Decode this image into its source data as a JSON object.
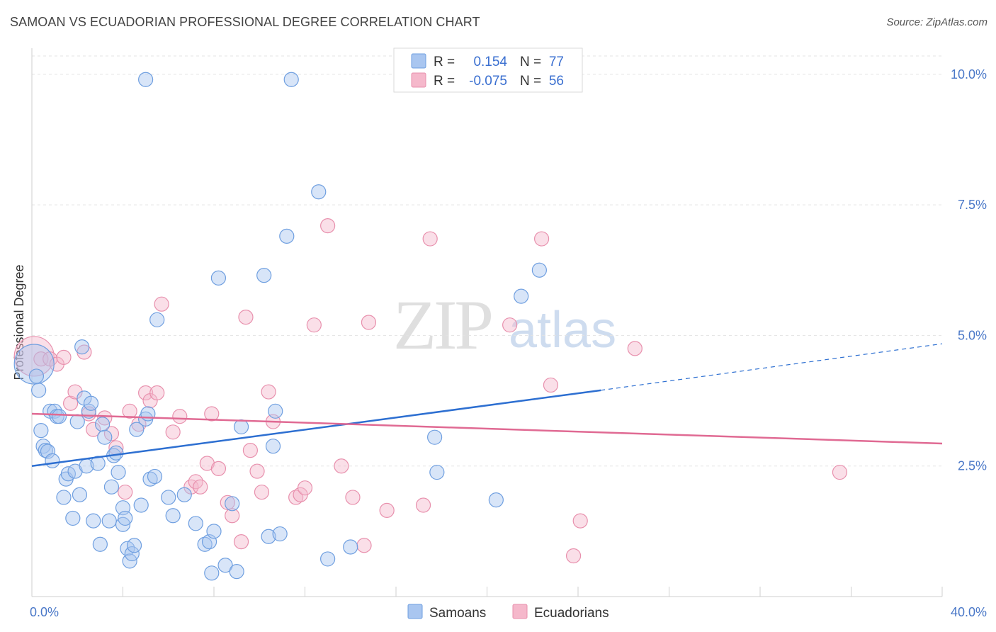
{
  "title": "SAMOAN VS ECUADORIAN PROFESSIONAL DEGREE CORRELATION CHART",
  "source": "Source: ZipAtlas.com",
  "watermark": "ZIPatlas",
  "colors": {
    "samoans": "#a9c6f0",
    "samoans_stroke": "#6f9fe0",
    "samoans_line": "#2d6fd1",
    "ecuadorians": "#f5b8cb",
    "ecuadorians_stroke": "#e890ad",
    "ecuadorians_line": "#e06a93",
    "tick_text": "#4a78c8"
  },
  "legend": {
    "samoans": {
      "r_label": "R =",
      "r_value": "0.154",
      "n_label": "N =",
      "n_value": "77"
    },
    "ecuadorians": {
      "r_label": "R =",
      "r_value": "-0.075",
      "n_label": "N =",
      "n_value": "56"
    }
  },
  "chart_data": {
    "type": "scatter",
    "title": "SAMOAN VS ECUADORIAN PROFESSIONAL DEGREE CORRELATION CHART",
    "xlabel": "",
    "ylabel": "Professional Degree",
    "xlim": [
      0,
      40
    ],
    "ylim": [
      0,
      10.5
    ],
    "x_tick_labels": [
      "0.0%",
      "40.0%"
    ],
    "y_ticks": [
      2.5,
      5.0,
      7.5,
      10.0
    ],
    "y_tick_labels": [
      "2.5%",
      "5.0%",
      "7.5%",
      "10.0%"
    ],
    "grid": true,
    "legend_position": "top-center",
    "series": [
      {
        "name": "Samoans",
        "trend": {
          "x0": 0,
          "y0": 2.5,
          "x1": 25,
          "y1": 3.95,
          "dashed_to_x": 40,
          "dashed_to_y": 4.84
        },
        "points": [
          [
            0.1,
            4.45,
            28
          ],
          [
            0.2,
            4.22,
            10
          ],
          [
            0.3,
            3.95,
            10
          ],
          [
            0.4,
            3.18,
            10
          ],
          [
            0.5,
            2.88,
            10
          ],
          [
            0.6,
            2.8,
            10
          ],
          [
            0.7,
            2.78,
            10
          ],
          [
            0.8,
            3.55,
            10
          ],
          [
            0.9,
            2.6,
            10
          ],
          [
            1.0,
            3.55,
            10
          ],
          [
            1.1,
            3.45,
            10
          ],
          [
            1.2,
            3.45,
            10
          ],
          [
            1.4,
            1.9,
            10
          ],
          [
            1.5,
            2.25,
            10
          ],
          [
            1.6,
            2.35,
            10
          ],
          [
            1.8,
            1.5,
            10
          ],
          [
            1.9,
            2.4,
            10
          ],
          [
            2.0,
            3.35,
            10
          ],
          [
            2.1,
            1.95,
            10
          ],
          [
            2.2,
            4.78,
            10
          ],
          [
            2.3,
            3.8,
            10
          ],
          [
            2.4,
            2.5,
            10
          ],
          [
            2.5,
            3.55,
            10
          ],
          [
            2.6,
            3.7,
            10
          ],
          [
            2.7,
            1.45,
            10
          ],
          [
            2.9,
            2.55,
            10
          ],
          [
            3.0,
            1.0,
            10
          ],
          [
            3.1,
            3.3,
            10
          ],
          [
            3.2,
            3.05,
            10
          ],
          [
            3.4,
            1.45,
            10
          ],
          [
            3.5,
            2.1,
            10
          ],
          [
            3.6,
            2.7,
            10
          ],
          [
            3.7,
            2.75,
            10
          ],
          [
            3.8,
            2.38,
            10
          ],
          [
            4.0,
            1.7,
            10
          ],
          [
            4.0,
            1.38,
            10
          ],
          [
            4.1,
            1.5,
            10
          ],
          [
            4.2,
            0.92,
            10
          ],
          [
            4.3,
            0.68,
            10
          ],
          [
            4.4,
            0.82,
            10
          ],
          [
            4.5,
            0.98,
            10
          ],
          [
            4.6,
            3.2,
            10
          ],
          [
            4.8,
            1.75,
            10
          ],
          [
            5.0,
            3.4,
            10
          ],
          [
            5.1,
            3.5,
            10
          ],
          [
            5.2,
            2.25,
            10
          ],
          [
            5.4,
            2.3,
            10
          ],
          [
            5.5,
            5.3,
            10
          ],
          [
            6.0,
            1.9,
            10
          ],
          [
            6.2,
            1.55,
            10
          ],
          [
            6.7,
            1.95,
            10
          ],
          [
            7.2,
            1.4,
            10
          ],
          [
            7.6,
            1.0,
            10
          ],
          [
            7.8,
            1.05,
            10
          ],
          [
            7.9,
            0.45,
            10
          ],
          [
            8.0,
            1.25,
            10
          ],
          [
            8.2,
            6.1,
            10
          ],
          [
            8.5,
            0.6,
            10
          ],
          [
            8.8,
            1.78,
            10
          ],
          [
            9.0,
            0.48,
            10
          ],
          [
            9.2,
            3.25,
            10
          ],
          [
            10.2,
            6.15,
            10
          ],
          [
            10.4,
            1.15,
            10
          ],
          [
            10.6,
            2.88,
            10
          ],
          [
            10.7,
            3.55,
            10
          ],
          [
            10.9,
            1.2,
            10
          ],
          [
            11.2,
            6.9,
            10
          ],
          [
            11.4,
            9.9,
            10
          ],
          [
            12.6,
            7.75,
            10
          ],
          [
            13.0,
            0.72,
            10
          ],
          [
            14.0,
            0.95,
            10
          ],
          [
            17.7,
            3.05,
            10
          ],
          [
            17.8,
            2.38,
            10
          ],
          [
            20.4,
            1.85,
            10
          ],
          [
            21.5,
            5.75,
            10
          ],
          [
            22.3,
            6.25,
            10
          ],
          [
            5.0,
            9.9,
            10
          ]
        ]
      },
      {
        "name": "Ecuadorians",
        "trend": {
          "x0": 0,
          "y0": 3.5,
          "x1": 40,
          "y1": 2.93
        },
        "points": [
          [
            0.1,
            4.6,
            28
          ],
          [
            0.4,
            4.55,
            10
          ],
          [
            0.8,
            4.55,
            10
          ],
          [
            1.1,
            4.45,
            10
          ],
          [
            1.4,
            4.58,
            10
          ],
          [
            1.7,
            3.7,
            10
          ],
          [
            1.9,
            3.92,
            10
          ],
          [
            2.3,
            4.68,
            10
          ],
          [
            2.5,
            3.5,
            10
          ],
          [
            2.7,
            3.2,
            10
          ],
          [
            3.2,
            3.42,
            10
          ],
          [
            3.5,
            3.12,
            10
          ],
          [
            3.7,
            2.85,
            10
          ],
          [
            4.1,
            2.0,
            10
          ],
          [
            4.3,
            3.55,
            10
          ],
          [
            4.7,
            3.3,
            10
          ],
          [
            5.0,
            3.9,
            10
          ],
          [
            5.2,
            3.75,
            10
          ],
          [
            5.5,
            3.9,
            10
          ],
          [
            5.7,
            5.6,
            10
          ],
          [
            6.2,
            3.15,
            10
          ],
          [
            6.5,
            3.45,
            10
          ],
          [
            7.0,
            2.1,
            10
          ],
          [
            7.2,
            2.2,
            10
          ],
          [
            7.4,
            2.1,
            10
          ],
          [
            7.7,
            2.55,
            10
          ],
          [
            7.9,
            3.5,
            10
          ],
          [
            8.2,
            2.45,
            10
          ],
          [
            8.6,
            1.8,
            10
          ],
          [
            8.8,
            1.55,
            10
          ],
          [
            9.2,
            1.05,
            10
          ],
          [
            9.4,
            5.35,
            10
          ],
          [
            9.6,
            2.8,
            10
          ],
          [
            9.9,
            2.4,
            10
          ],
          [
            10.1,
            2.0,
            10
          ],
          [
            10.4,
            3.92,
            10
          ],
          [
            10.6,
            3.35,
            10
          ],
          [
            11.6,
            1.9,
            10
          ],
          [
            11.8,
            1.95,
            10
          ],
          [
            12.0,
            2.08,
            10
          ],
          [
            12.4,
            5.2,
            10
          ],
          [
            13.0,
            7.1,
            10
          ],
          [
            13.6,
            2.5,
            10
          ],
          [
            14.1,
            1.9,
            10
          ],
          [
            14.6,
            0.98,
            10
          ],
          [
            14.8,
            5.25,
            10
          ],
          [
            15.6,
            1.65,
            10
          ],
          [
            17.2,
            1.75,
            10
          ],
          [
            17.5,
            6.85,
            10
          ],
          [
            21.0,
            5.2,
            10
          ],
          [
            22.4,
            6.85,
            10
          ],
          [
            22.8,
            4.05,
            10
          ],
          [
            23.8,
            0.78,
            10
          ],
          [
            24.1,
            1.45,
            10
          ],
          [
            26.5,
            4.75,
            10
          ],
          [
            35.5,
            2.38,
            10
          ]
        ]
      }
    ]
  },
  "bottom_legend": {
    "samoans_label": "Samoans",
    "ecuadorians_label": "Ecuadorians"
  }
}
